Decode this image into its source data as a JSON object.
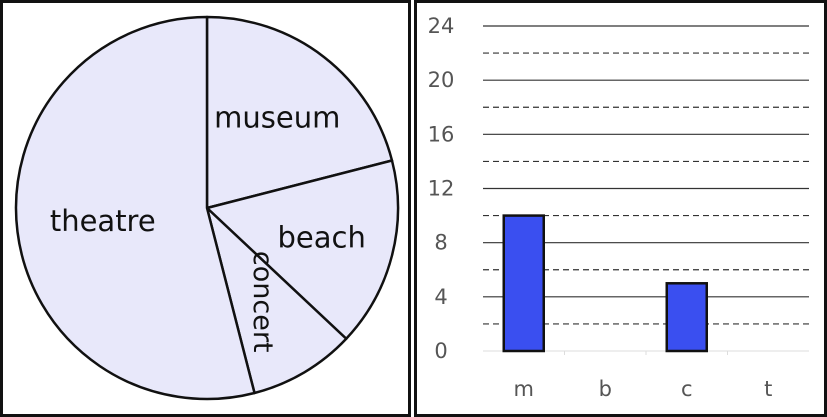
{
  "chart_data": [
    {
      "type": "pie",
      "slices": [
        {
          "label": "museum",
          "value": 21
        },
        {
          "label": "beach",
          "value": 16
        },
        {
          "label": "concert",
          "value": 9
        },
        {
          "label": "theatre",
          "value": 54
        }
      ],
      "colors": {
        "fill": "#e8e8fa",
        "stroke": "#111111"
      }
    },
    {
      "type": "bar",
      "categories": [
        "m",
        "b",
        "c",
        "t"
      ],
      "values": [
        10,
        0,
        5,
        0
      ],
      "ylim": [
        0,
        24
      ],
      "yticks": [
        "0",
        "4",
        "8",
        "12",
        "16",
        "20",
        "24"
      ],
      "grid": "solid lines at labelled ticks, dashed lines midway",
      "colors": {
        "bar": "#3a4ff0",
        "stroke": "#111111",
        "grid": "#333333"
      }
    }
  ]
}
